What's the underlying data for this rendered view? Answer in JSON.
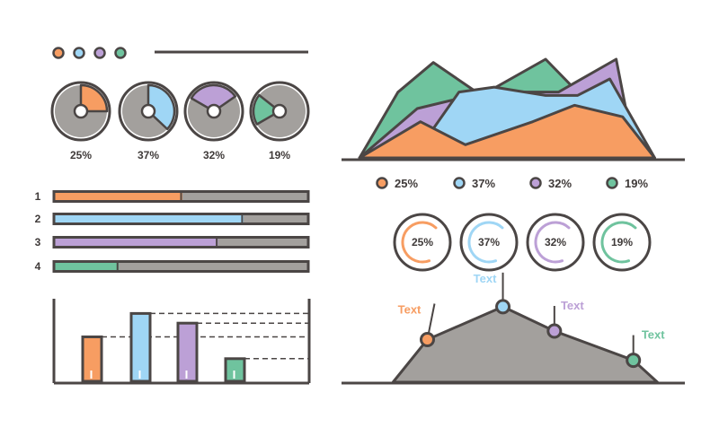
{
  "colors": {
    "orange": "#f79d62",
    "blue": "#9fd6f5",
    "purple": "#bca0d6",
    "green": "#6fc39e",
    "gray": "#a3a09d",
    "outline": "#4b4645",
    "label": "#3f3a39"
  },
  "chart_data": [
    {
      "type": "pie",
      "title": "",
      "categories": [
        "25%",
        "37%",
        "32%",
        "19%"
      ],
      "values": [
        25,
        37,
        32,
        19
      ],
      "series_colors": [
        "orange",
        "blue",
        "purple",
        "green"
      ]
    },
    {
      "type": "area",
      "title": "",
      "series": [
        {
          "color": "green",
          "points": [
            [
              0,
              0
            ],
            [
              12,
              40
            ],
            [
              23,
              58
            ],
            [
              38,
              38
            ],
            [
              58,
              60
            ],
            [
              68,
              40
            ],
            [
              78,
              0
            ]
          ]
        },
        {
          "color": "purple",
          "points": [
            [
              0,
              0
            ],
            [
              18,
              30
            ],
            [
              35,
              38
            ],
            [
              50,
              40
            ],
            [
              62,
              40
            ],
            [
              80,
              60
            ],
            [
              86,
              0
            ]
          ]
        },
        {
          "color": "blue",
          "points": [
            [
              0,
              0
            ],
            [
              22,
              15
            ],
            [
              31,
              40
            ],
            [
              42,
              43
            ],
            [
              58,
              38
            ],
            [
              68,
              38
            ],
            [
              78,
              48
            ],
            [
              92,
              0
            ]
          ]
        },
        {
          "color": "orange",
          "points": [
            [
              0,
              0
            ],
            [
              19,
              22
            ],
            [
              33,
              8
            ],
            [
              54,
              22
            ],
            [
              67,
              32
            ],
            [
              82,
              25
            ],
            [
              92,
              0
            ]
          ]
        }
      ],
      "legend": [
        {
          "label": "25%",
          "color": "orange"
        },
        {
          "label": "37%",
          "color": "blue"
        },
        {
          "label": "32%",
          "color": "purple"
        },
        {
          "label": "19%",
          "color": "green"
        }
      ],
      "legend_position": "bottom"
    },
    {
      "type": "bar",
      "orientation": "horizontal",
      "categories": [
        "1",
        "2",
        "3",
        "4"
      ],
      "values": [
        50,
        74,
        64,
        25
      ],
      "max": 100,
      "series_colors": [
        "orange",
        "blue",
        "purple",
        "green"
      ]
    },
    {
      "type": "progress-ring",
      "labels": [
        "25%",
        "37%",
        "32%",
        "19%"
      ],
      "values": [
        25,
        37,
        32,
        19
      ],
      "series_colors": [
        "orange",
        "blue",
        "purple",
        "green"
      ]
    },
    {
      "type": "bar",
      "categories": [
        "",
        "",
        "",
        ""
      ],
      "values": [
        55,
        84,
        72,
        28
      ],
      "ylim": [
        0,
        100
      ],
      "series_colors": [
        "orange",
        "blue",
        "purple",
        "green"
      ],
      "reference_lines": true
    },
    {
      "type": "area",
      "annotations": [
        {
          "x": 25,
          "y": 35,
          "label": "Text",
          "color": "orange"
        },
        {
          "x": 47,
          "y": 62,
          "label": "Text",
          "color": "blue"
        },
        {
          "x": 62,
          "y": 42,
          "label": "Text",
          "color": "purple"
        },
        {
          "x": 85,
          "y": 18,
          "label": "Text",
          "color": "green"
        }
      ],
      "points": [
        [
          15,
          0
        ],
        [
          25,
          35
        ],
        [
          47,
          62
        ],
        [
          62,
          42
        ],
        [
          85,
          18
        ],
        [
          92,
          0
        ]
      ],
      "color": "gray"
    }
  ],
  "header": {
    "dots": [
      "orange",
      "blue",
      "purple",
      "green"
    ]
  }
}
